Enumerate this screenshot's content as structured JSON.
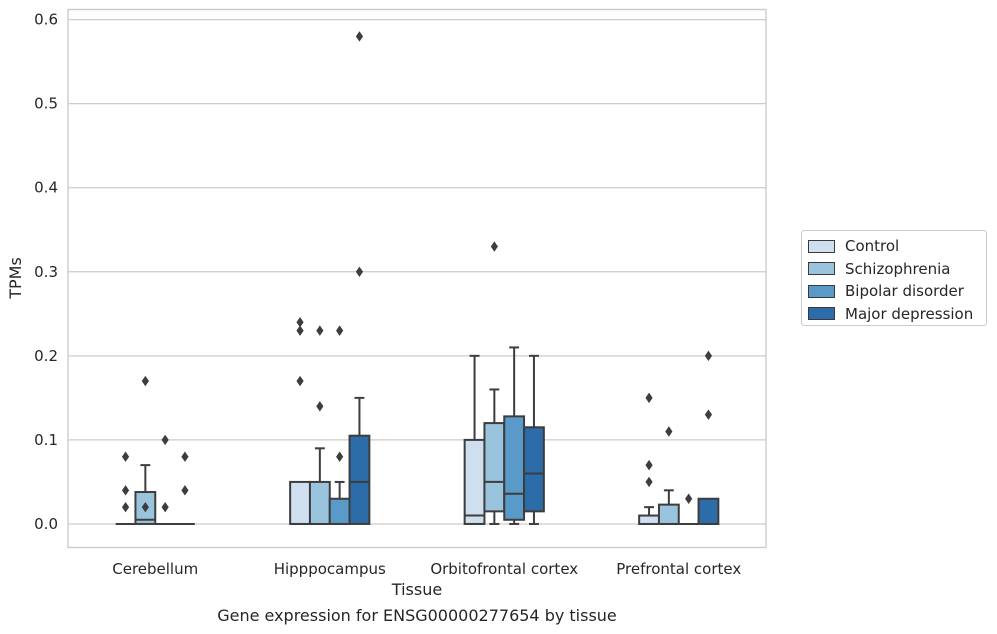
{
  "chart_data": {
    "type": "box",
    "title": "",
    "xlabel": "Tissue",
    "ylabel": "TPMs",
    "caption": "Gene expression for ENSG00000277654 by tissue",
    "ylim": [
      -0.028,
      0.612
    ],
    "yticks": [
      "0.0",
      "0.1",
      "0.2",
      "0.3",
      "0.4",
      "0.5",
      "0.6"
    ],
    "grid": "horizontal",
    "legend_position": "right",
    "categories": [
      "Cerebellum",
      "Hipppocampus",
      "Orbitofrontal cortex",
      "Prefrontal cortex"
    ],
    "series": [
      {
        "name": "Control",
        "color": "#cfdff0",
        "boxes": [
          {
            "q1": 0,
            "median": 0,
            "q3": 0,
            "whisker_low": 0,
            "whisker_high": 0,
            "outliers": [
              0.08,
              0.04,
              0.02
            ]
          },
          {
            "q1": 0,
            "median": 0,
            "q3": 0.05,
            "whisker_low": 0,
            "whisker_high": 0.05,
            "outliers": [
              0.24,
              0.23,
              0.17
            ]
          },
          {
            "q1": 0,
            "median": 0.01,
            "q3": 0.1,
            "whisker_low": 0,
            "whisker_high": 0.2,
            "outliers": []
          },
          {
            "q1": 0,
            "median": 0,
            "q3": 0.01,
            "whisker_low": 0,
            "whisker_high": 0.02,
            "outliers": [
              0.15,
              0.07,
              0.05
            ]
          }
        ]
      },
      {
        "name": "Schizophrenia",
        "color": "#9ac4dd",
        "boxes": [
          {
            "q1": 0,
            "median": 0.005,
            "q3": 0.038,
            "whisker_low": 0,
            "whisker_high": 0.07,
            "outliers": [
              0.17,
              0.02
            ]
          },
          {
            "q1": 0,
            "median": 0,
            "q3": 0.05,
            "whisker_low": 0,
            "whisker_high": 0.09,
            "outliers": [
              0.23,
              0.14
            ]
          },
          {
            "q1": 0.015,
            "median": 0.05,
            "q3": 0.12,
            "whisker_low": 0,
            "whisker_high": 0.16,
            "outliers": [
              0.33
            ]
          },
          {
            "q1": 0,
            "median": 0,
            "q3": 0.023,
            "whisker_low": 0,
            "whisker_high": 0.04,
            "outliers": [
              0.11
            ]
          }
        ]
      },
      {
        "name": "Bipolar disorder",
        "color": "#5a9ac8",
        "boxes": [
          {
            "q1": 0,
            "median": 0,
            "q3": 0,
            "whisker_low": 0,
            "whisker_high": 0,
            "outliers": [
              0.1,
              0.02
            ]
          },
          {
            "q1": 0,
            "median": 0,
            "q3": 0.03,
            "whisker_low": 0,
            "whisker_high": 0.05,
            "outliers": [
              0.23,
              0.08
            ]
          },
          {
            "q1": 0.005,
            "median": 0.036,
            "q3": 0.128,
            "whisker_low": 0,
            "whisker_high": 0.21,
            "outliers": []
          },
          {
            "q1": 0,
            "median": 0,
            "q3": 0,
            "whisker_low": 0,
            "whisker_high": 0,
            "outliers": [
              0.03
            ]
          }
        ]
      },
      {
        "name": "Major depression",
        "color": "#2c6ca8",
        "boxes": [
          {
            "q1": 0,
            "median": 0,
            "q3": 0,
            "whisker_low": 0,
            "whisker_high": 0,
            "outliers": [
              0.08,
              0.04
            ]
          },
          {
            "q1": 0,
            "median": 0.05,
            "q3": 0.105,
            "whisker_low": 0,
            "whisker_high": 0.15,
            "outliers": [
              0.58,
              0.3
            ]
          },
          {
            "q1": 0.015,
            "median": 0.06,
            "q3": 0.115,
            "whisker_low": 0,
            "whisker_high": 0.2,
            "outliers": []
          },
          {
            "q1": 0,
            "median": 0,
            "q3": 0.03,
            "whisker_low": 0,
            "whisker_high": 0.03,
            "outliers": [
              0.2,
              0.13
            ]
          }
        ]
      }
    ]
  }
}
